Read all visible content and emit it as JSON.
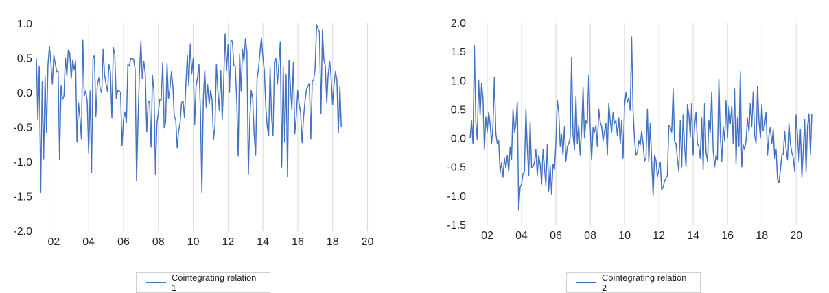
{
  "chart_data": [
    {
      "type": "line",
      "x_tick_labels": [
        "02",
        "04",
        "06",
        "08",
        "10",
        "12",
        "14",
        "16",
        "18",
        "20"
      ],
      "y_tick_labels": [
        "1.0",
        "0.5",
        "0.0",
        "-0.5",
        "-1.0",
        "-1.5",
        "-2.0"
      ],
      "ylim": [
        -2.0,
        1.0
      ],
      "xlim": [
        2001.0,
        2021.75
      ],
      "grid": "vertical",
      "legend_position": "bottom",
      "series": [
        {
          "name": "Cointegrating relation 1",
          "color": "#4472C4",
          "x_start": 2001.0,
          "step": 0.0833,
          "values": [
            0.49,
            -0.4,
            0.38,
            -1.45,
            0.15,
            -0.96,
            0.24,
            -0.58,
            0.4,
            0.67,
            0.42,
            0.12,
            0.54,
            0.42,
            0.3,
            0.32,
            -0.97,
            0.1,
            -0.1,
            -0.05,
            0.5,
            0.24,
            0.61,
            0.57,
            0.2,
            0.47,
            0.33,
            0.45,
            -0.72,
            -0.15,
            -0.37,
            -0.67,
            0.76,
            -0.05,
            0.02,
            -0.12,
            -0.88,
            0.02,
            -1.16,
            0.5,
            0.53,
            -0.35,
            0.12,
            0.21,
            0.05,
            -0.01,
            0.63,
            0.25,
            0.12,
            0.01,
            0.4,
            0.3,
            -0.37,
            0.65,
            0.55,
            -0.09,
            0.03,
            0.02,
            0.0,
            -0.77,
            -0.4,
            -0.28,
            -0.44,
            0.4,
            0.38,
            0.49,
            0.49,
            0.48,
            0.33,
            -1.28,
            -0.42,
            0.29,
            0.74,
            0.2,
            0.45,
            0.26,
            -0.57,
            -0.12,
            -0.15,
            -0.79,
            0.24,
            0.01,
            -1.18,
            -0.45,
            -0.3,
            -0.1,
            -0.11,
            0.43,
            -0.51,
            -0.44,
            0.42,
            -0.09,
            0.05,
            0.3,
            0.09,
            -0.35,
            -0.4,
            -0.8,
            -0.56,
            -0.44,
            -0.15,
            -0.12,
            -0.37,
            0.13,
            0.54,
            0.1,
            0.7,
            0.27,
            0.49,
            -0.47,
            0.09,
            0.21,
            0.41,
            -0.3,
            -1.45,
            -0.09,
            0.32,
            -0.22,
            0.11,
            -0.17,
            0.03,
            -0.1,
            -0.68,
            -0.5,
            0.41,
            0.01,
            -0.26,
            0.32,
            -0.4,
            0.14,
            0.85,
            0.32,
            0.69,
            0.0,
            0.75,
            0.74,
            0.39,
            0.38,
            -0.13,
            -0.92,
            0.55,
            0.02,
            0.62,
            0.45,
            0.78,
            0.59,
            -1.18,
            -0.38,
            0.03,
            -0.09,
            -0.6,
            -0.91,
            0.2,
            0.35,
            0.58,
            0.79,
            0.51,
            0.32,
            -0.21,
            -0.5,
            -0.62,
            0.36,
            -0.35,
            -0.62,
            0.45,
            0.49,
            0.12,
            0.41,
            0.73,
            -1.08,
            0.37,
            -0.72,
            0.26,
            -1.22,
            0.47,
            0.08,
            -0.25,
            0.43,
            -0.6,
            -0.35,
            0.03,
            -0.17,
            -0.29,
            -0.73,
            -0.36,
            -0.13,
            0.04,
            0.09,
            0.13,
            -0.67,
            0.16,
            0.18,
            0.35,
            0.98,
            0.92,
            0.87,
            -0.31,
            0.9,
            0.48,
            0.38,
            -0.15,
            0.26,
            0.45,
            0.21,
            -0.18,
            0.12,
            0.3,
            0.18,
            -0.58,
            0.09,
            -0.5
          ]
        }
      ]
    },
    {
      "type": "line",
      "x_tick_labels": [
        "02",
        "04",
        "06",
        "08",
        "10",
        "12",
        "14",
        "16",
        "18",
        "20"
      ],
      "y_tick_labels": [
        "2.0",
        "1.5",
        "1.0",
        "0.5",
        "0.0",
        "-0.5",
        "-1.0",
        "-1.5"
      ],
      "ylim": [
        -1.5,
        2.0
      ],
      "xlim": [
        2001.0,
        2021.75
      ],
      "grid": "vertical",
      "legend_position": "bottom",
      "series": [
        {
          "name": "Cointegrating relation 2",
          "color": "#4472C4",
          "x_start": 2001.0,
          "step": 0.0833,
          "values": [
            0.0,
            0.3,
            -0.1,
            1.6,
            0.3,
            -0.02,
            1.0,
            0.4,
            0.95,
            0.7,
            -0.2,
            0.36,
            0.1,
            0.45,
            0.25,
            -0.1,
            0.2,
            1.05,
            0.08,
            -0.1,
            -0.05,
            -0.6,
            -0.42,
            -0.68,
            -0.35,
            -0.52,
            -0.3,
            -0.58,
            -0.16,
            -0.37,
            0.5,
            0.1,
            0.23,
            0.62,
            -1.25,
            -0.85,
            -0.8,
            -0.62,
            -0.58,
            0.5,
            -0.15,
            -0.65,
            0.28,
            -0.52,
            -0.5,
            -0.42,
            -0.2,
            -0.65,
            -0.3,
            -0.45,
            -0.8,
            -0.2,
            -0.5,
            -0.82,
            -0.12,
            -0.92,
            -0.48,
            -0.98,
            -0.45,
            -0.55,
            -0.1,
            0.65,
            0.45,
            -0.15,
            0.06,
            -0.3,
            0.2,
            -0.4,
            -0.15,
            -0.1,
            0.0,
            1.4,
            0.05,
            -0.2,
            0.72,
            -0.1,
            0.22,
            -0.3,
            0.12,
            0.88,
            0.0,
            0.3,
            0.25,
            1.08,
            0.2,
            -0.38,
            0.18,
            0.1,
            0.22,
            -0.15,
            0.5,
            0.28,
            0.2,
            -0.05,
            0.12,
            0.25,
            -0.3,
            0.6,
            0.3,
            0.1,
            0.45,
            0.25,
            0.3,
            0.05,
            0.35,
            -0.1,
            0.3,
            -0.35,
            0.55,
            0.78,
            0.62,
            0.7,
            0.48,
            1.75,
            0.48,
            -0.02,
            -0.3,
            -0.25,
            -0.05,
            -0.12,
            0.12,
            -0.1,
            -0.4,
            -0.35,
            0.5,
            -0.42,
            0.25,
            -0.4,
            -1.0,
            -0.3,
            -0.38,
            -0.67,
            -0.55,
            -0.42,
            -0.9,
            -0.85,
            -0.75,
            -0.7,
            -0.65,
            0.22,
            0.18,
            0.1,
            0.85,
            -0.05,
            -0.1,
            -0.35,
            -0.58,
            0.3,
            -0.5,
            0.4,
            -0.15,
            -0.5,
            0.58,
            0.4,
            0.02,
            0.6,
            -0.3,
            0.2,
            0.45,
            -0.1,
            -0.15,
            -0.35,
            0.35,
            -0.55,
            0.6,
            -0.25,
            -0.4,
            0.3,
            0.1,
            0.8,
            -0.2,
            -0.5,
            -0.3,
            -0.38,
            1.02,
            0.05,
            -0.4,
            0.2,
            -0.05,
            0.65,
            0.0,
            0.55,
            0.25,
            0.55,
            -0.1,
            0.85,
            -0.45,
            0.35,
            -0.15,
            1.15,
            -0.5,
            -0.12,
            -0.2,
            -0.05,
            0.35,
            0.1,
            0.6,
            0.2,
            0.8,
            0.05,
            -0.1,
            0.9,
            0.3,
            0.0,
            0.58,
            0.12,
            0.22,
            0.45,
            -0.3,
            0.05,
            0.18,
            -0.1,
            0.15,
            -0.35,
            -0.2,
            -0.72,
            -0.78,
            -0.55,
            -0.3,
            -0.28,
            0.12,
            -0.2,
            -0.38,
            0.25,
            -0.1,
            -0.25,
            -0.35,
            -0.58,
            0.4,
            0.05,
            -0.42,
            0.15,
            -0.68,
            -0.22,
            0.32,
            -0.58,
            0.2,
            0.42,
            -0.28,
            0.42
          ]
        }
      ]
    }
  ]
}
